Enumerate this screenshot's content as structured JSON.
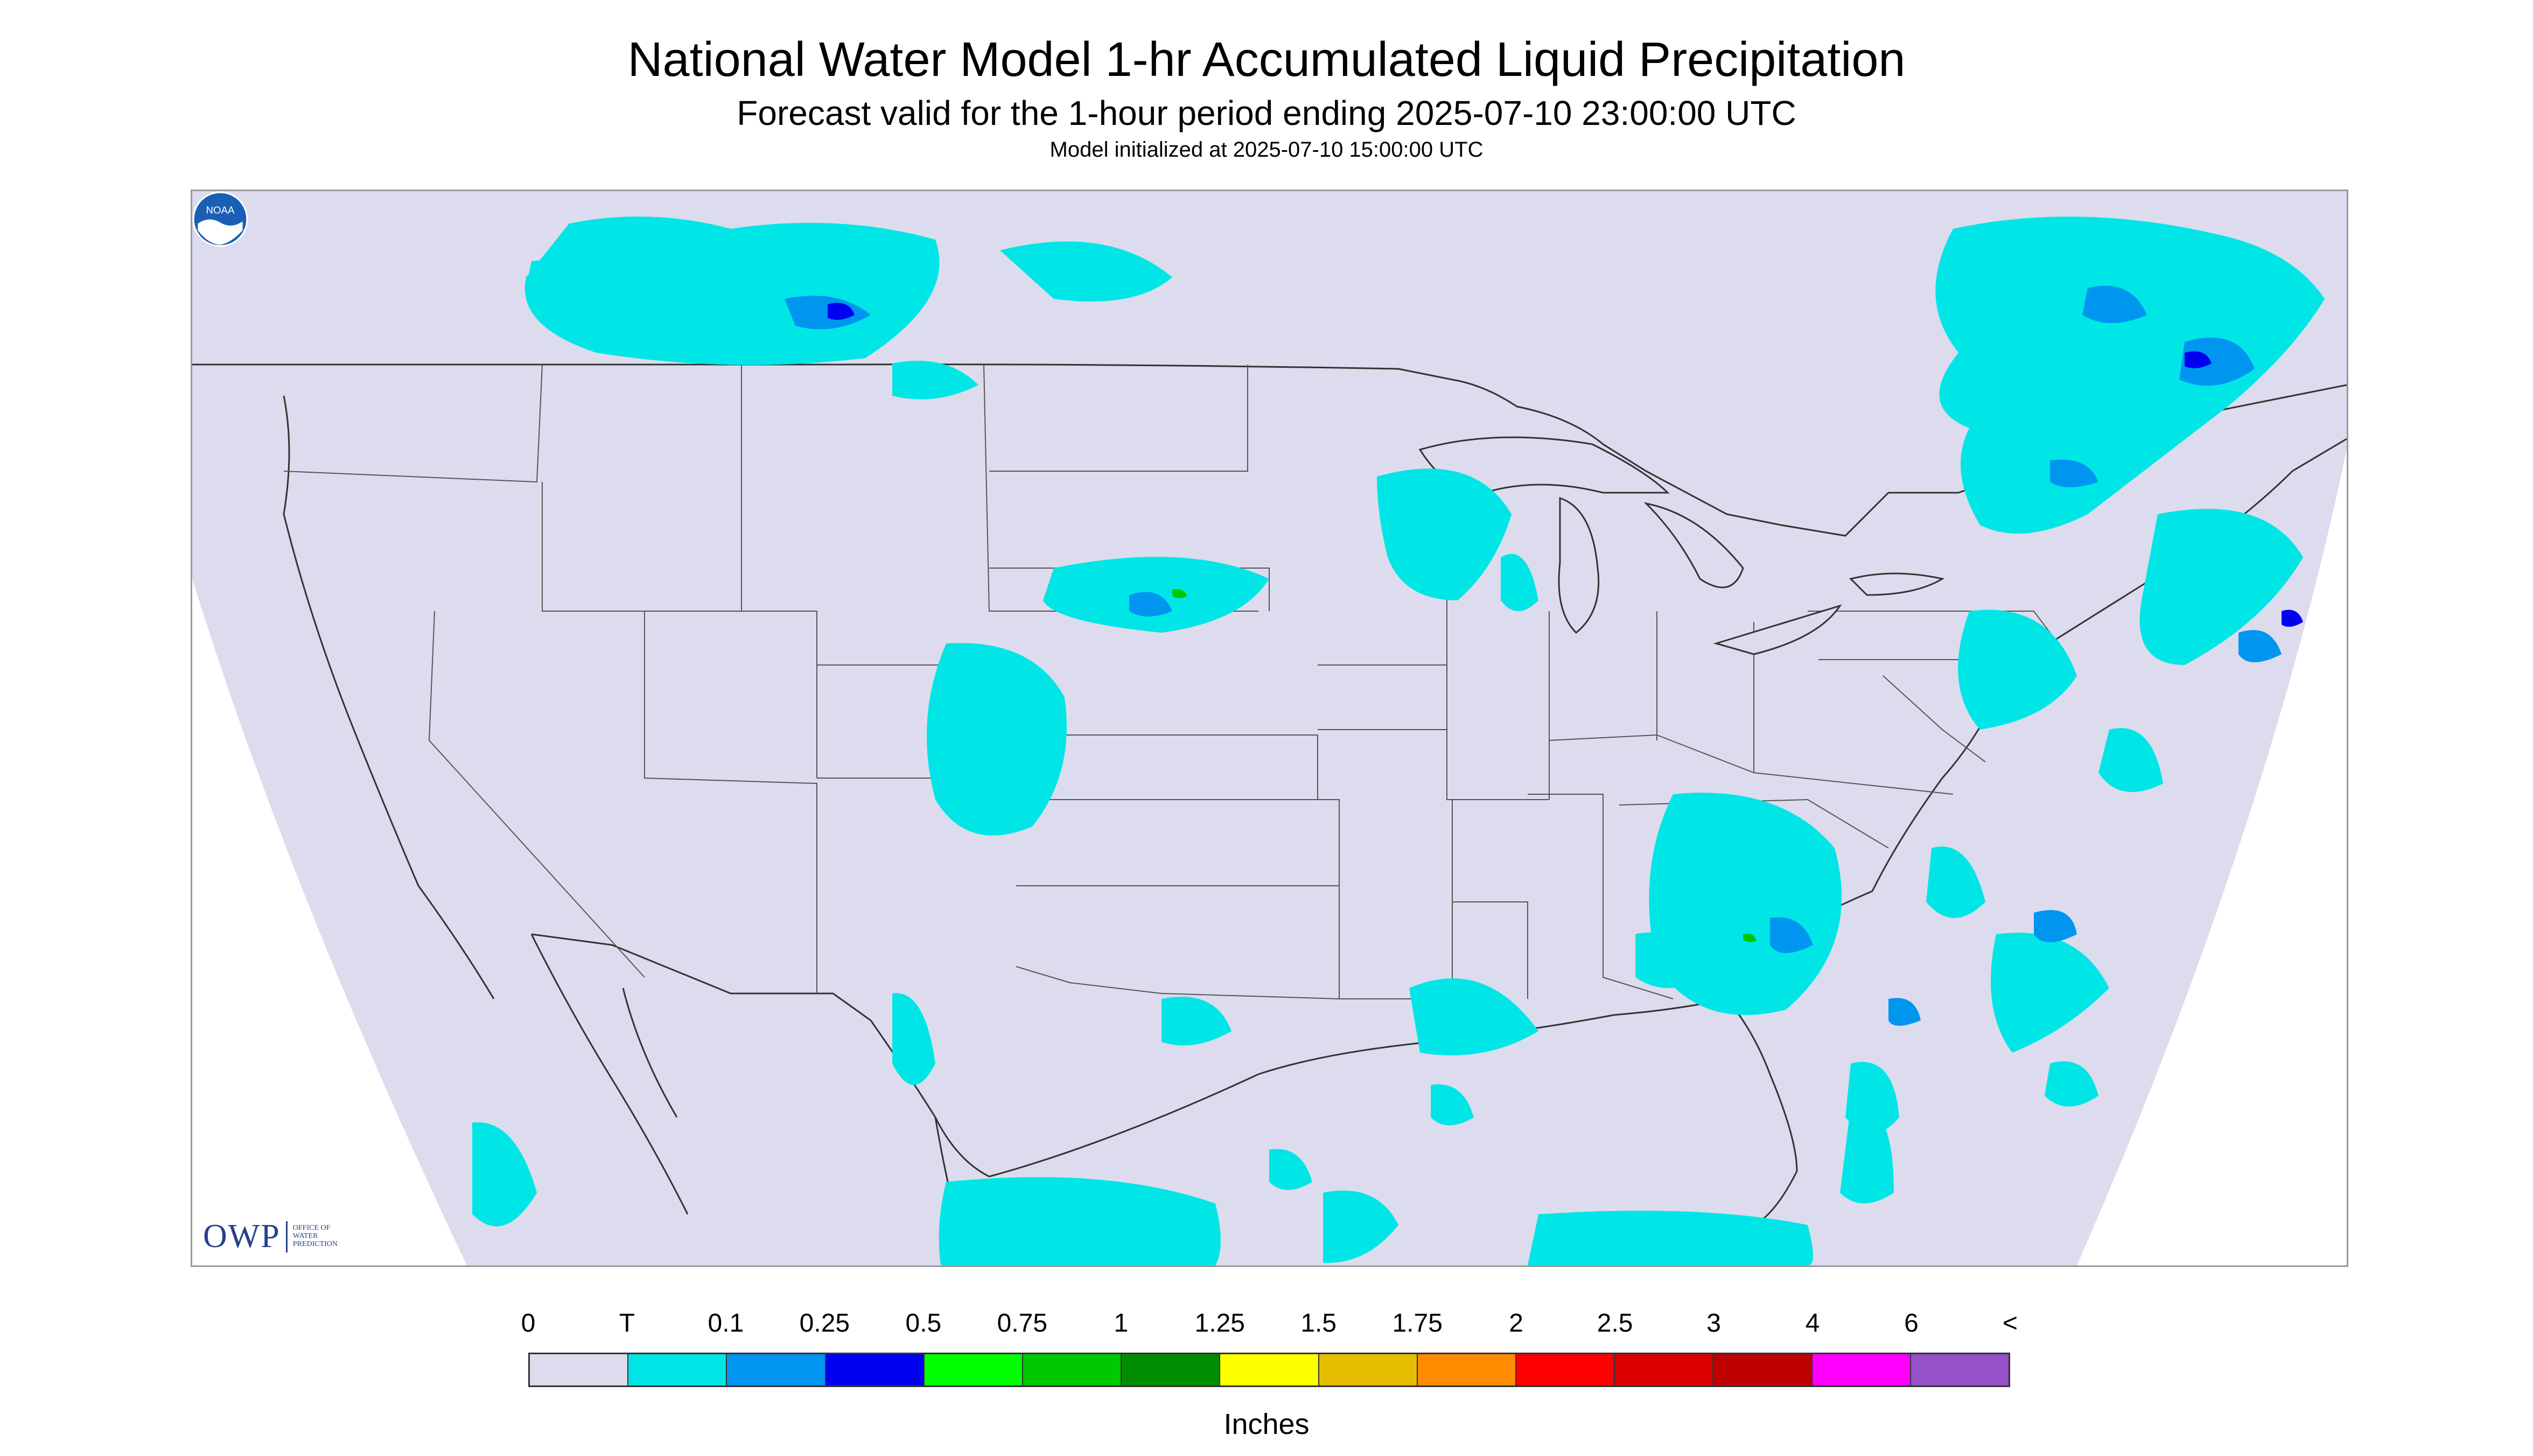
{
  "title": "National Water Model 1-hr Accumulated Liquid Precipitation",
  "subtitle": "Forecast valid for the 1-hour period ending 2025-07-10 23:00:00 UTC",
  "init_line": "Model initialized at 2025-07-10 15:00:00 UTC",
  "logo": {
    "owp_mark": "OWP",
    "owp_text_lines": [
      "OFFICE OF",
      "WATER",
      "PREDICTION"
    ],
    "noaa_label": "NOAA"
  },
  "legend": {
    "tick_labels": [
      "0",
      "T",
      "0.1",
      "0.25",
      "0.5",
      "0.75",
      "1",
      "1.25",
      "1.5",
      "1.75",
      "2",
      "2.5",
      "3",
      "4",
      "6",
      "<"
    ],
    "colors": [
      "#dcdcee",
      "#00e6e6",
      "#0096f0",
      "#0000f0",
      "#00ff00",
      "#00c800",
      "#008c00",
      "#ffff00",
      "#e6be00",
      "#ff8c00",
      "#ff0000",
      "#dc0000",
      "#be0000",
      "#ff00ff",
      "#9650c8"
    ],
    "units": "Inches"
  },
  "map_colors": {
    "domain_fill": "#dcdcee",
    "outside_fill": "#ffffff",
    "boundary_stroke": "#333333",
    "precip_trace": "#00e6e6",
    "precip_light": "#0096f0",
    "precip_moderate": "#0000f0",
    "precip_heavy": "#00c800"
  }
}
